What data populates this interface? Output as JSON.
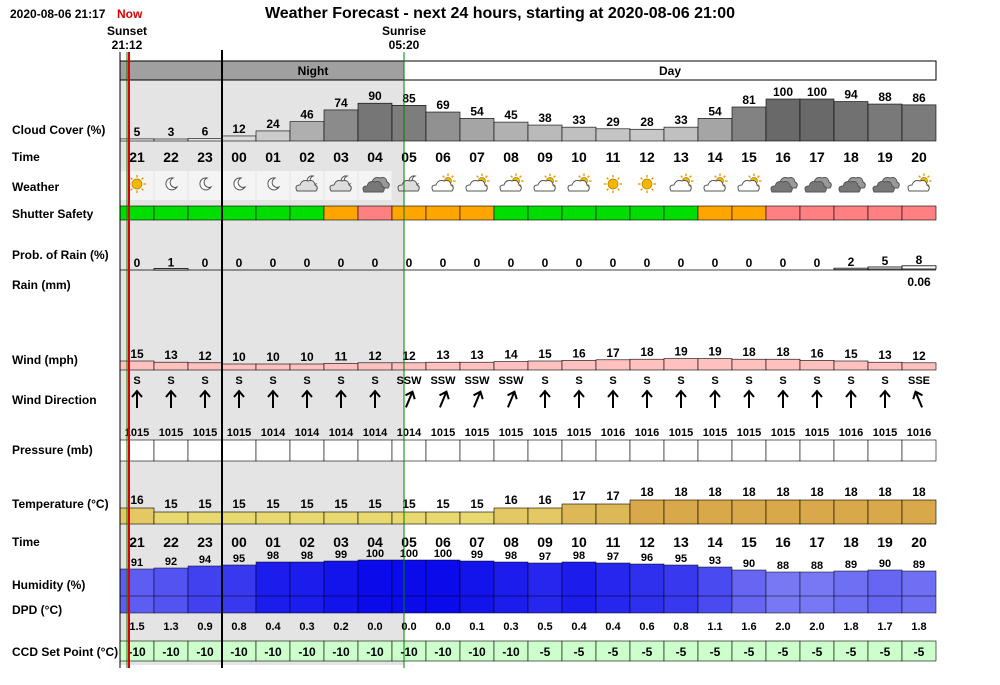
{
  "header": {
    "timestamp": "2020-08-06 21:17",
    "now_label": "Now",
    "title": "Weather Forecast - next 24 hours, starting at 2020-08-06 21:00",
    "sunset_label": "Sunset",
    "sunset_time": "21:12",
    "sunrise_label": "Sunrise",
    "sunrise_time": "05:20"
  },
  "bands": {
    "night": "Night",
    "day": "Day"
  },
  "row_labels": {
    "cloud": "Cloud Cover (%)",
    "time": "Time",
    "weather": "Weather",
    "shutter": "Shutter Safety",
    "prob_rain": "Prob. of Rain (%)",
    "rain": "Rain (mm)",
    "wind": "Wind (mph)",
    "wind_dir": "Wind Direction",
    "pressure": "Pressure (mb)",
    "temperature": "Temperature (°C)",
    "time2": "Time",
    "humidity": "Humidity (%)",
    "dpd": "DPD (°C)",
    "ccd": "CCD Set Point (°C)"
  },
  "colors": {
    "night_band": "#e4e4e4",
    "night_header": "#a0a0a0",
    "shutter_safe": "#00dd00",
    "shutter_caution": "#ffa500",
    "shutter_unsafe": "#ff8080",
    "now_line": "#dd0000",
    "ccd_bg": "#ccffcc",
    "wind_fill": "#ffc0c0",
    "sun_line": "#008000"
  },
  "chart_data": {
    "type": "table",
    "hours": [
      "21",
      "22",
      "23",
      "00",
      "01",
      "02",
      "03",
      "04",
      "05",
      "06",
      "07",
      "08",
      "09",
      "10",
      "11",
      "12",
      "13",
      "14",
      "15",
      "16",
      "17",
      "18",
      "19",
      "20"
    ],
    "cloud_cover": [
      5,
      3,
      6,
      12,
      24,
      46,
      74,
      90,
      85,
      69,
      54,
      45,
      38,
      33,
      29,
      28,
      33,
      54,
      81,
      100,
      100,
      94,
      88,
      86
    ],
    "weather_icons": [
      "sun-icon",
      "moon-icon",
      "moon-icon",
      "moon-icon",
      "moon-icon",
      "moon-cloud-icon",
      "moon-cloud-icon",
      "cloud-icon",
      "moon-cloud-icon",
      "sun-cloud-icon",
      "sun-cloud-icon",
      "sun-cloud-icon",
      "sun-cloud-icon",
      "sun-cloud-icon",
      "sun-icon",
      "sun-icon",
      "sun-cloud-icon",
      "sun-cloud-icon",
      "sun-cloud-icon",
      "cloud-icon",
      "cloud-icon",
      "cloud-icon",
      "cloud-icon",
      "sun-cloud-icon"
    ],
    "shutter_safety": [
      "safe",
      "safe",
      "safe",
      "safe",
      "safe",
      "safe",
      "caution",
      "unsafe",
      "caution",
      "caution",
      "caution",
      "safe",
      "safe",
      "safe",
      "safe",
      "safe",
      "safe",
      "caution",
      "caution",
      "unsafe",
      "unsafe",
      "unsafe",
      "unsafe",
      "unsafe"
    ],
    "prob_rain": [
      0,
      1,
      0,
      0,
      0,
      0,
      0,
      0,
      0,
      0,
      0,
      0,
      0,
      0,
      0,
      0,
      0,
      0,
      0,
      0,
      0,
      2,
      5,
      8
    ],
    "rain": [
      null,
      null,
      null,
      null,
      null,
      null,
      null,
      null,
      null,
      null,
      null,
      null,
      null,
      null,
      null,
      null,
      null,
      null,
      null,
      null,
      null,
      null,
      null,
      "0.06"
    ],
    "wind": [
      15,
      13,
      12,
      10,
      10,
      10,
      11,
      12,
      12,
      13,
      13,
      14,
      15,
      16,
      17,
      18,
      19,
      19,
      18,
      18,
      16,
      15,
      13,
      12
    ],
    "wind_dir": [
      "S",
      "S",
      "S",
      "S",
      "S",
      "S",
      "S",
      "S",
      "SSW",
      "SSW",
      "SSW",
      "SSW",
      "S",
      "S",
      "S",
      "S",
      "S",
      "S",
      "S",
      "S",
      "S",
      "S",
      "S",
      "SSE"
    ],
    "pressure": [
      1015,
      1015,
      1015,
      1015,
      1014,
      1014,
      1014,
      1014,
      1014,
      1015,
      1015,
      1015,
      1015,
      1015,
      1016,
      1016,
      1015,
      1015,
      1015,
      1015,
      1015,
      1016,
      1015,
      1016
    ],
    "temperature": [
      16,
      15,
      15,
      15,
      15,
      15,
      15,
      15,
      15,
      15,
      15,
      16,
      16,
      17,
      17,
      18,
      18,
      18,
      18,
      18,
      18,
      18,
      18,
      18
    ],
    "humidity": [
      91,
      92,
      94,
      95,
      98,
      98,
      99,
      100,
      100,
      100,
      99,
      98,
      97,
      98,
      97,
      96,
      95,
      93,
      90,
      88,
      88,
      89,
      90,
      89
    ],
    "dpd": [
      "1.5",
      "1.3",
      "0.9",
      "0.8",
      "0.4",
      "0.3",
      "0.2",
      "0.0",
      "0.0",
      "0.0",
      "0.1",
      "0.3",
      "0.5",
      "0.4",
      "0.4",
      "0.6",
      "0.8",
      "1.1",
      "1.6",
      "2.0",
      "2.0",
      "1.8",
      "1.7",
      "1.8"
    ],
    "ccd_set_point": [
      -10,
      -10,
      -10,
      -10,
      -10,
      -10,
      -10,
      -10,
      -10,
      -10,
      -10,
      -10,
      -5,
      -5,
      -5,
      -5,
      -5,
      -5,
      -5,
      -5,
      -5,
      -5,
      -5,
      -5
    ]
  }
}
